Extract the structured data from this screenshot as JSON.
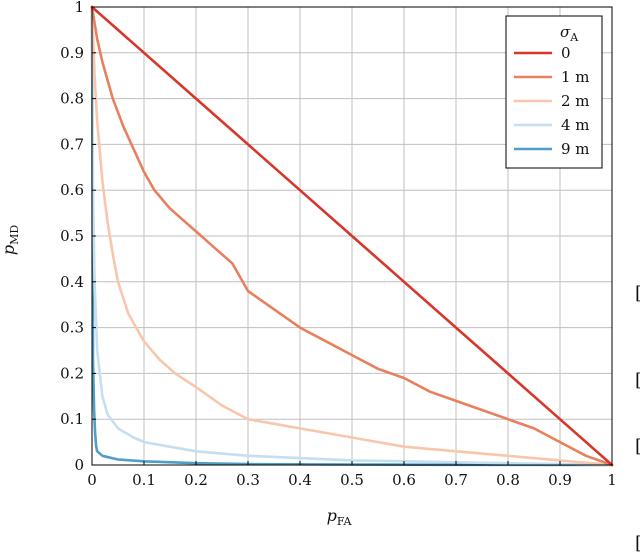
{
  "chart_data": {
    "type": "line",
    "xlabel": "p",
    "xlabel_sub": "FA",
    "ylabel": "p",
    "ylabel_sub": "MD",
    "xlim": [
      0,
      1
    ],
    "ylim": [
      0,
      1
    ],
    "x_ticks": [
      "0",
      "0.1",
      "0.2",
      "0.3",
      "0.4",
      "0.5",
      "0.6",
      "0.7",
      "0.8",
      "0.9",
      "1"
    ],
    "y_ticks": [
      "0",
      "0.1",
      "0.2",
      "0.3",
      "0.4",
      "0.5",
      "0.6",
      "0.7",
      "0.8",
      "0.9",
      "1"
    ],
    "grid": true,
    "legend": {
      "title": "σ",
      "title_sub": "A",
      "placement": "top-right"
    },
    "series": [
      {
        "name": "0",
        "color": "#d7362a",
        "x": [
          0,
          0.02,
          0.05,
          0.1,
          0.2,
          0.3,
          0.4,
          0.5,
          0.6,
          0.7,
          0.8,
          0.9,
          1
        ],
        "y": [
          1,
          0.98,
          0.95,
          0.9,
          0.8,
          0.7,
          0.6,
          0.5,
          0.4,
          0.3,
          0.2,
          0.1,
          0
        ]
      },
      {
        "name": "1 m",
        "color": "#e8805e",
        "x": [
          0,
          0.01,
          0.02,
          0.04,
          0.06,
          0.08,
          0.1,
          0.12,
          0.15,
          0.18,
          0.2,
          0.23,
          0.27,
          0.3,
          0.35,
          0.4,
          0.45,
          0.5,
          0.55,
          0.6,
          0.65,
          0.7,
          0.75,
          0.8,
          0.85,
          0.9,
          0.95,
          1
        ],
        "y": [
          1,
          0.93,
          0.88,
          0.8,
          0.74,
          0.69,
          0.64,
          0.6,
          0.56,
          0.53,
          0.51,
          0.48,
          0.44,
          0.38,
          0.34,
          0.3,
          0.27,
          0.24,
          0.21,
          0.19,
          0.16,
          0.14,
          0.12,
          0.1,
          0.08,
          0.05,
          0.02,
          0
        ]
      },
      {
        "name": "2 m",
        "color": "#f8c7ab",
        "x": [
          0,
          0.005,
          0.01,
          0.02,
          0.03,
          0.04,
          0.05,
          0.07,
          0.1,
          0.13,
          0.16,
          0.2,
          0.25,
          0.3,
          0.35,
          0.4,
          0.5,
          0.6,
          0.7,
          0.8,
          0.9,
          1
        ],
        "y": [
          1,
          0.85,
          0.75,
          0.62,
          0.53,
          0.46,
          0.4,
          0.33,
          0.27,
          0.23,
          0.2,
          0.17,
          0.13,
          0.1,
          0.09,
          0.08,
          0.06,
          0.04,
          0.03,
          0.02,
          0.01,
          0
        ]
      },
      {
        "name": "4 m",
        "color": "#c5dff0",
        "x": [
          0,
          0.002,
          0.005,
          0.01,
          0.02,
          0.03,
          0.05,
          0.08,
          0.1,
          0.15,
          0.2,
          0.3,
          0.4,
          0.5,
          0.6,
          0.7,
          0.8,
          0.9,
          1
        ],
        "y": [
          1,
          0.6,
          0.4,
          0.25,
          0.15,
          0.11,
          0.08,
          0.06,
          0.05,
          0.04,
          0.03,
          0.02,
          0.015,
          0.01,
          0.008,
          0.006,
          0.004,
          0.002,
          0
        ]
      },
      {
        "name": "9 m",
        "color": "#4f9ec6",
        "x": [
          0,
          0.001,
          0.002,
          0.004,
          0.006,
          0.008,
          0.01,
          0.02,
          0.05,
          0.1,
          0.2,
          0.3,
          0.5,
          0.7,
          1
        ],
        "y": [
          1,
          0.7,
          0.23,
          0.12,
          0.07,
          0.04,
          0.03,
          0.02,
          0.012,
          0.008,
          0.004,
          0.002,
          0.001,
          0.0005,
          0
        ]
      }
    ]
  },
  "page": {
    "edge_glyph_1": "[",
    "edge_glyph_2": "[",
    "edge_glyph_3": "[",
    "edge_glyph_4": "["
  }
}
